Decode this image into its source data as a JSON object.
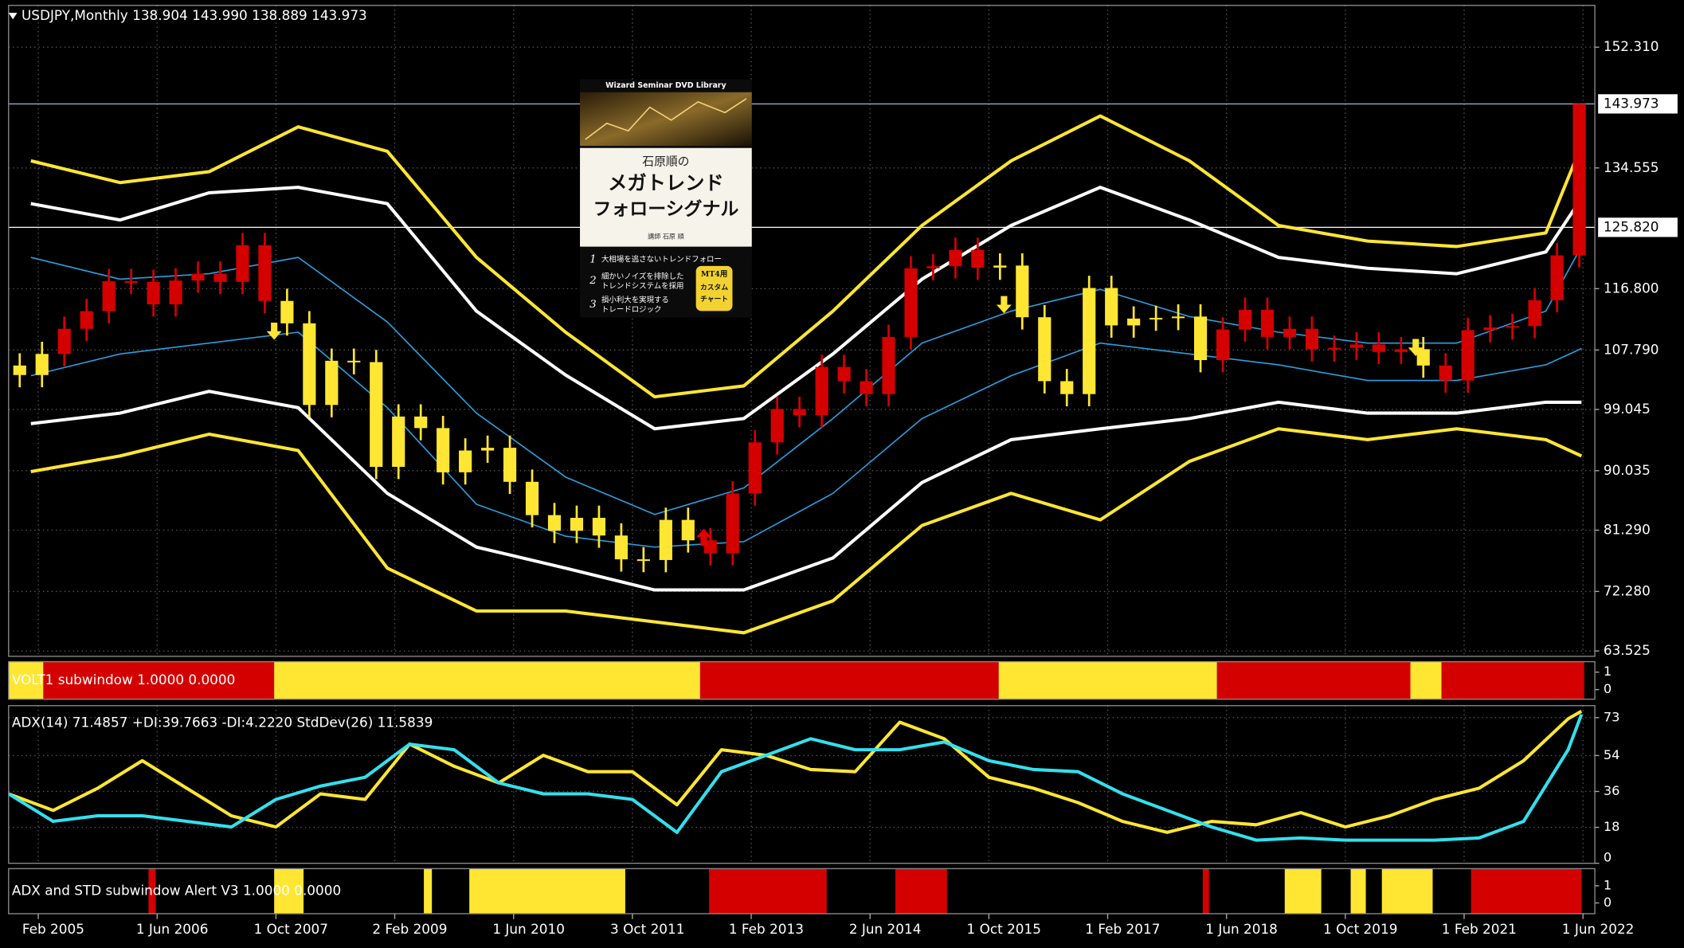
{
  "chart_data": [
    {
      "type": "candlestick",
      "title": "USDJPY,Monthly  138.904 143.990 138.889 143.973",
      "xlim": [
        2004.75,
        2022.55
      ],
      "xticks": [
        {
          "value": 2005.083,
          "label": "Feb 2005"
        },
        {
          "value": 2006.417,
          "label": "1 Jun 2006"
        },
        {
          "value": 2007.75,
          "label": "1 Oct 2007"
        },
        {
          "value": 2009.083,
          "label": "2 Feb 2009"
        },
        {
          "value": 2010.417,
          "label": "1 Jun 2010"
        },
        {
          "value": 2011.75,
          "label": "3 Oct 2011"
        },
        {
          "value": 2013.083,
          "label": "1 Feb 2013"
        },
        {
          "value": 2014.417,
          "label": "2 Jun 2014"
        },
        {
          "value": 2015.75,
          "label": "1 Oct 2015"
        },
        {
          "value": 2017.083,
          "label": "1 Feb 2017"
        },
        {
          "value": 2018.417,
          "label": "1 Jun 2018"
        },
        {
          "value": 2019.75,
          "label": "1 Oct 2019"
        },
        {
          "value": 2021.083,
          "label": "1 Feb 2021"
        },
        {
          "value": 2022.417,
          "label": "1 Jun 2022"
        }
      ],
      "ylim": [
        62.74,
        158.46
      ],
      "yticks": [
        {
          "value": 152.31,
          "label": "152.310"
        },
        134.555,
        {
          "value": 116.8,
          "label": "116.800"
        },
        {
          "value": 107.79,
          "label": "107.790"
        },
        99.045,
        90.035,
        {
          "value": 81.29,
          "label": "81.290"
        },
        {
          "value": 72.28,
          "label": "72.280"
        },
        63.525
      ],
      "grid": true,
      "levels": [
        {
          "value": 125.82,
          "label": "125.820",
          "color": "#ffffff"
        },
        {
          "value": 143.973,
          "label": "143.973",
          "color": "#9aa9c4"
        }
      ],
      "candles": {
        "x": [
          2004.875,
          2005.125,
          2005.375,
          2005.625,
          2005.875,
          2006.125,
          2006.375,
          2006.625,
          2006.875,
          2007.125,
          2007.375,
          2007.625,
          2007.875,
          2008.125,
          2008.375,
          2008.625,
          2008.875,
          2009.125,
          2009.375,
          2009.625,
          2009.875,
          2010.125,
          2010.375,
          2010.625,
          2010.875,
          2011.125,
          2011.375,
          2011.625,
          2011.875,
          2012.125,
          2012.375,
          2012.625,
          2012.875,
          2013.125,
          2013.375,
          2013.625,
          2013.875,
          2014.125,
          2014.375,
          2014.625,
          2014.875,
          2015.125,
          2015.375,
          2015.625,
          2015.875,
          2016.125,
          2016.375,
          2016.625,
          2016.875,
          2017.125,
          2017.375,
          2017.625,
          2017.875,
          2018.125,
          2018.375,
          2018.625,
          2018.875,
          2019.125,
          2019.375,
          2019.625,
          2019.875,
          2020.125,
          2020.375,
          2020.625,
          2020.875,
          2021.125,
          2021.375,
          2021.625,
          2021.875,
          2022.125,
          2022.375
        ],
        "open": [
          105.5,
          104.1,
          107.2,
          110.9,
          113.5,
          117.9,
          117.8,
          114.5,
          118.0,
          119.0,
          117.8,
          123.2,
          115.0,
          111.7,
          99.7,
          106.2,
          106.0,
          90.6,
          98.0,
          96.3,
          89.8,
          93.0,
          93.4,
          88.4,
          83.5,
          81.2,
          83.1,
          80.5,
          77.0,
          76.9,
          82.8,
          79.8,
          77.9,
          86.7,
          94.2,
          99.1,
          98.2,
          105.3,
          103.2,
          101.3,
          109.7,
          119.8,
          120.1,
          122.5,
          119.9,
          120.2,
          112.6,
          103.2,
          101.3,
          116.9,
          111.4,
          112.4,
          112.5,
          112.7,
          106.3,
          110.8,
          113.7,
          109.7,
          110.9,
          107.9,
          108.1,
          108.6,
          107.5,
          107.9,
          105.5,
          103.3,
          110.7,
          111.1,
          111.3,
          115.1,
          121.7
        ],
        "high": [
          107.3,
          109.0,
          112.7,
          115.3,
          119.7,
          119.7,
          119.6,
          119.8,
          120.8,
          120.8,
          125.0,
          125.0,
          116.8,
          113.5,
          108.0,
          108.0,
          107.8,
          99.8,
          99.8,
          98.1,
          94.8,
          95.2,
          95.2,
          90.2,
          85.3,
          84.9,
          84.9,
          82.3,
          78.8,
          84.6,
          84.6,
          81.6,
          88.5,
          96.0,
          100.9,
          100.9,
          107.1,
          107.1,
          105.0,
          111.5,
          121.6,
          121.9,
          124.3,
          124.3,
          122.0,
          122.0,
          114.4,
          105.0,
          118.7,
          118.7,
          114.2,
          114.3,
          114.5,
          114.5,
          112.6,
          115.5,
          115.5,
          112.7,
          112.7,
          109.9,
          110.4,
          110.4,
          109.7,
          109.7,
          107.3,
          112.5,
          112.9,
          113.1,
          116.9,
          123.5,
          143.99
        ],
        "low": [
          102.3,
          102.3,
          105.4,
          109.1,
          111.7,
          116.0,
          112.7,
          112.7,
          116.2,
          116.0,
          116.0,
          113.2,
          109.9,
          97.9,
          97.9,
          104.2,
          88.8,
          88.8,
          94.5,
          88.0,
          88.0,
          91.2,
          86.6,
          81.7,
          79.4,
          79.4,
          78.7,
          75.2,
          75.1,
          75.1,
          78.0,
          76.1,
          76.1,
          84.9,
          92.4,
          96.4,
          96.4,
          101.4,
          99.5,
          99.5,
          107.9,
          118.0,
          118.3,
          118.1,
          118.1,
          110.8,
          101.4,
          99.5,
          99.5,
          109.6,
          109.6,
          110.6,
          110.7,
          104.5,
          104.5,
          109.0,
          107.9,
          107.9,
          106.1,
          106.1,
          106.3,
          105.7,
          105.7,
          103.7,
          101.5,
          101.5,
          108.9,
          109.3,
          109.5,
          113.3,
          119.9
        ],
        "close": [
          104.1,
          107.2,
          110.9,
          113.5,
          117.9,
          117.8,
          114.5,
          118.0,
          119.0,
          117.8,
          123.2,
          115.0,
          111.7,
          99.7,
          106.2,
          106.0,
          90.6,
          98.0,
          96.3,
          89.8,
          93.0,
          93.4,
          88.4,
          83.5,
          81.2,
          83.1,
          80.5,
          77.0,
          76.9,
          82.8,
          79.8,
          77.9,
          86.7,
          94.2,
          99.1,
          98.2,
          105.3,
          103.2,
          101.3,
          109.7,
          119.8,
          120.1,
          122.5,
          119.9,
          120.2,
          112.6,
          103.2,
          101.3,
          116.9,
          111.4,
          112.4,
          112.5,
          112.7,
          106.3,
          110.8,
          113.7,
          109.7,
          110.9,
          107.9,
          108.1,
          108.6,
          107.5,
          107.9,
          105.5,
          103.3,
          110.7,
          111.1,
          111.3,
          115.1,
          121.7,
          143.973
        ]
      },
      "bands": {
        "x": [
          2005,
          2006,
          2007,
          2008,
          2009,
          2010,
          2011,
          2012,
          2013,
          2014,
          2015,
          2016,
          2017,
          2018,
          2019,
          2020,
          2021,
          2022,
          2022.4
        ],
        "series": [
          {
            "color": "#ffe633",
            "width": 3,
            "values": [
              135.6,
              132.4,
              134.0,
              140.6,
              137.0,
              121.4,
              110.4,
              100.9,
              102.5,
              113.5,
              126.1,
              135.6,
              142.2,
              135.6,
              126.1,
              123.8,
              123.0,
              125.0,
              137.9
            ]
          },
          {
            "color": "#ffffff",
            "width": 3,
            "values": [
              129.3,
              126.9,
              130.9,
              131.7,
              129.3,
              113.5,
              104.1,
              96.2,
              97.7,
              107.2,
              118.2,
              126.1,
              131.7,
              126.9,
              121.4,
              119.8,
              119.0,
              122.2,
              130.1
            ]
          },
          {
            "color": "#2b9fe0",
            "width": 1.2,
            "values": [
              121.4,
              118.2,
              119.0,
              121.4,
              111.9,
              98.5,
              89.1,
              83.6,
              87.5,
              97.7,
              108.8,
              113.5,
              116.7,
              112.7,
              110.4,
              108.8,
              108.8,
              113.5,
              123.0
            ]
          },
          {
            "color": "#2b9fe0",
            "width": 1.2,
            "values": [
              104.0,
              107.2,
              108.8,
              110.4,
              99.3,
              85.1,
              80.4,
              78.8,
              79.6,
              86.7,
              97.7,
              104.0,
              108.8,
              107.2,
              105.6,
              103.3,
              103.3,
              105.6,
              108.0
            ]
          },
          {
            "color": "#ffffff",
            "width": 3,
            "values": [
              96.96,
              98.5,
              101.7,
              99.3,
              86.7,
              78.8,
              75.7,
              72.5,
              72.5,
              77.2,
              88.3,
              94.6,
              96.2,
              97.7,
              100.1,
              98.5,
              98.5,
              100.1,
              100.1
            ]
          },
          {
            "color": "#ffe633",
            "width": 3,
            "values": [
              89.9,
              92.2,
              95.4,
              93.0,
              75.7,
              69.4,
              69.4,
              67.8,
              66.2,
              70.9,
              81.98,
              86.7,
              82.8,
              91.4,
              96.2,
              94.6,
              96.2,
              94.6,
              92.2
            ]
          }
        ]
      },
      "arrows": {
        "x": [
          2007.73,
          2015.92,
          2020.54,
          2012.55
        ],
        "y": [
          109.6,
          113.5,
          107.2,
          81.2
        ],
        "direction": [
          "down",
          "down",
          "down",
          "up"
        ]
      },
      "arrow_colors": {
        "down": "#ffe633",
        "up": "#e00000"
      }
    },
    {
      "type": "band",
      "title": "VOLT1 subwindow 1.0000 0.0000",
      "xlim": [
        2004.75,
        2022.55
      ],
      "ylim": [
        -0.55,
        1.6
      ],
      "yticks": [
        1,
        0
      ],
      "segments": [
        {
          "start": 2004.75,
          "end": 2005.14,
          "color": "#ffe633"
        },
        {
          "start": 2005.14,
          "end": 2007.73,
          "color": "#d40000"
        },
        {
          "start": 2007.73,
          "end": 2012.51,
          "color": "#ffe633"
        },
        {
          "start": 2012.51,
          "end": 2015.86,
          "color": "#d40000"
        },
        {
          "start": 2015.86,
          "end": 2018.31,
          "color": "#ffe633"
        },
        {
          "start": 2018.31,
          "end": 2020.48,
          "color": "#d40000"
        },
        {
          "start": 2020.48,
          "end": 2020.83,
          "color": "#ffe633"
        },
        {
          "start": 2020.83,
          "end": 2022.43,
          "color": "#d40000"
        }
      ]
    },
    {
      "type": "line",
      "title": "ADX(14) 71.4857 +DI:39.7663 -DI:4.2220  StdDev(26) 11.5839",
      "xlim": [
        2004.75,
        2022.55
      ],
      "ylim": [
        0,
        79
      ],
      "yticks": [
        73,
        54,
        36,
        18,
        0
      ],
      "grid": true,
      "x": [
        2004.75,
        2005.25,
        2005.75,
        2006.25,
        2006.75,
        2007.25,
        2007.75,
        2008.25,
        2008.75,
        2009.25,
        2009.75,
        2010.25,
        2010.75,
        2011.25,
        2011.75,
        2012.25,
        2012.75,
        2013.25,
        2013.75,
        2014.25,
        2014.75,
        2015.25,
        2015.75,
        2016.25,
        2016.75,
        2017.25,
        2017.75,
        2018.25,
        2018.75,
        2019.25,
        2019.75,
        2020.25,
        2020.75,
        2021.25,
        2021.75,
        2022.25,
        2022.4
      ],
      "series": [
        {
          "color": "#ffe633",
          "values": [
            34.8,
            26.5,
            37.6,
            51.4,
            37.6,
            23.8,
            18.2,
            34.8,
            32.0,
            59.7,
            48.6,
            40.3,
            54.1,
            45.9,
            45.9,
            29.3,
            56.9,
            54.1,
            47.0,
            45.9,
            70.7,
            62.4,
            43.1,
            37.6,
            30.4,
            21.0,
            15.5,
            21.0,
            19.3,
            25.4,
            18.2,
            23.8,
            32.0,
            37.6,
            51.4,
            72.4,
            76.2
          ]
        },
        {
          "color": "#33e0ee",
          "values": [
            34.8,
            21.0,
            23.8,
            23.8,
            21.0,
            18.2,
            32.0,
            38.7,
            43.1,
            59.7,
            56.9,
            40.3,
            34.8,
            34.8,
            32.0,
            15.5,
            45.9,
            54.1,
            62.4,
            56.9,
            56.9,
            60.8,
            51.4,
            47.0,
            45.9,
            34.8,
            26.5,
            18.2,
            11.6,
            12.7,
            11.6,
            11.6,
            11.6,
            12.7,
            21.0,
            56.9,
            74.6
          ]
        }
      ]
    },
    {
      "type": "band",
      "title": "ADX and STD subwindow Alert V3 1.0000 0.0000",
      "xlim": [
        2004.75,
        2022.55
      ],
      "ylim": [
        -0.625,
        2.0
      ],
      "yticks": [
        1,
        0
      ],
      "segments": [
        {
          "start": 2006.32,
          "end": 2006.4,
          "color": "#d40000"
        },
        {
          "start": 2007.73,
          "end": 2008.06,
          "color": "#ffe633"
        },
        {
          "start": 2009.41,
          "end": 2009.5,
          "color": "#ffe633"
        },
        {
          "start": 2009.92,
          "end": 2011.67,
          "color": "#ffe633"
        },
        {
          "start": 2012.61,
          "end": 2013.93,
          "color": "#d40000"
        },
        {
          "start": 2014.7,
          "end": 2015.28,
          "color": "#d40000"
        },
        {
          "start": 2018.15,
          "end": 2018.22,
          "color": "#d40000"
        },
        {
          "start": 2019.07,
          "end": 2019.48,
          "color": "#ffe633"
        },
        {
          "start": 2019.81,
          "end": 2019.98,
          "color": "#ffe633"
        },
        {
          "start": 2020.16,
          "end": 2020.73,
          "color": "#ffe633"
        },
        {
          "start": 2021.16,
          "end": 2022.4,
          "color": "#d40000"
        }
      ]
    }
  ],
  "overlay": {
    "series_label": "Wizard Seminar DVD Library",
    "author": "石原順の",
    "title_lines": [
      "メガトレンド",
      "フォローシグナル"
    ],
    "byline": "講師 石原 順",
    "points": [
      {
        "number": "1",
        "lines": [
          "大相場を逃さないトレンドフォロー"
        ]
      },
      {
        "number": "2",
        "lines": [
          "細かいノイズを排除した",
          "トレンドシステムを採用"
        ]
      },
      {
        "number": "3",
        "lines": [
          "損小利大を実現する",
          "トレードロジック"
        ]
      }
    ],
    "badge": [
      "MT4用",
      "カスタム",
      "チャート"
    ]
  }
}
